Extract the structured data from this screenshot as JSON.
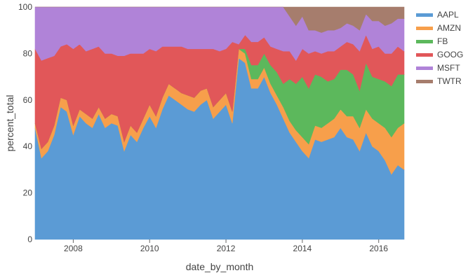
{
  "chart_data": {
    "type": "area",
    "stacked": true,
    "xlabel": "date_by_month",
    "ylabel": "percent_total",
    "ylim": [
      0,
      100
    ],
    "yticks": [
      0,
      20,
      40,
      60,
      80,
      100
    ],
    "xlim": [
      "2007-01",
      "2016-09"
    ],
    "xticks": [
      "2008",
      "2010",
      "2012",
      "2014",
      "2016"
    ],
    "grid": false,
    "legend_position": "right",
    "x": [
      "2007-01",
      "2007-03",
      "2007-05",
      "2007-07",
      "2007-09",
      "2007-11",
      "2008-01",
      "2008-03",
      "2008-05",
      "2008-07",
      "2008-09",
      "2008-11",
      "2009-01",
      "2009-03",
      "2009-05",
      "2009-07",
      "2009-09",
      "2009-11",
      "2010-01",
      "2010-03",
      "2010-05",
      "2010-07",
      "2010-09",
      "2010-11",
      "2011-01",
      "2011-03",
      "2011-05",
      "2011-07",
      "2011-09",
      "2011-11",
      "2012-01",
      "2012-03",
      "2012-05",
      "2012-07",
      "2012-09",
      "2012-11",
      "2013-01",
      "2013-03",
      "2013-05",
      "2013-07",
      "2013-09",
      "2013-11",
      "2014-01",
      "2014-03",
      "2014-05",
      "2014-07",
      "2014-09",
      "2014-11",
      "2015-01",
      "2015-03",
      "2015-05",
      "2015-07",
      "2015-09",
      "2015-11",
      "2016-01",
      "2016-03",
      "2016-05",
      "2016-07",
      "2016-09"
    ],
    "series": [
      {
        "name": "AAPL",
        "color": "#5b9bd5",
        "values": [
          48,
          35,
          38,
          45,
          57,
          55,
          45,
          53,
          50,
          48,
          54,
          48,
          50,
          49,
          38,
          45,
          42,
          48,
          53,
          48,
          56,
          62,
          60,
          58,
          56,
          55,
          58,
          60,
          52,
          55,
          58,
          50,
          78,
          76,
          65,
          65,
          70,
          63,
          58,
          52,
          46,
          42,
          38,
          35,
          43,
          42,
          43,
          44,
          48,
          44,
          43,
          38,
          46,
          40,
          38,
          34,
          28,
          32,
          30
        ]
      },
      {
        "name": "AMZN",
        "color": "#f79f4b",
        "values": [
          2,
          4,
          4,
          4,
          4,
          5,
          4,
          3,
          4,
          4,
          3,
          4,
          4,
          4,
          4,
          4,
          4,
          4,
          5,
          5,
          5,
          5,
          5,
          5,
          6,
          6,
          6,
          5,
          5,
          5,
          5,
          5,
          4,
          4,
          4,
          4,
          4,
          4,
          4,
          5,
          5,
          5,
          6,
          6,
          6,
          6,
          7,
          8,
          8,
          9,
          10,
          10,
          10,
          12,
          12,
          14,
          16,
          16,
          20
        ]
      },
      {
        "name": "FB",
        "color": "#5cb85c",
        "values": [
          0,
          0,
          0,
          0,
          0,
          0,
          0,
          0,
          0,
          0,
          0,
          0,
          0,
          0,
          0,
          0,
          0,
          0,
          0,
          0,
          0,
          0,
          0,
          0,
          0,
          0,
          0,
          0,
          0,
          0,
          0,
          0,
          0,
          2,
          6,
          6,
          6,
          8,
          10,
          10,
          18,
          20,
          26,
          24,
          22,
          22,
          18,
          17,
          17,
          20,
          18,
          16,
          20,
          18,
          19,
          20,
          22,
          23,
          21
        ]
      },
      {
        "name": "GOOG",
        "color": "#e15759",
        "values": [
          32,
          38,
          36,
          30,
          22,
          24,
          33,
          28,
          27,
          30,
          26,
          28,
          26,
          26,
          37,
          31,
          34,
          28,
          24,
          28,
          22,
          16,
          18,
          20,
          20,
          21,
          18,
          17,
          25,
          21,
          19,
          30,
          2,
          6,
          10,
          10,
          7,
          8,
          10,
          14,
          12,
          10,
          12,
          15,
          10,
          10,
          13,
          12,
          10,
          12,
          13,
          17,
          12,
          12,
          14,
          12,
          14,
          12,
          10
        ]
      },
      {
        "name": "MSFT",
        "color": "#b083d8",
        "values": [
          18,
          23,
          22,
          21,
          17,
          16,
          18,
          16,
          19,
          18,
          17,
          20,
          20,
          21,
          21,
          20,
          20,
          20,
          18,
          19,
          17,
          17,
          17,
          17,
          18,
          18,
          18,
          18,
          18,
          19,
          18,
          15,
          16,
          12,
          15,
          15,
          13,
          17,
          18,
          19,
          15,
          15,
          14,
          10,
          9,
          9,
          9,
          9,
          8,
          8,
          8,
          9,
          9,
          12,
          11,
          12,
          13,
          12,
          14
        ]
      },
      {
        "name": "TWTR",
        "color": "#a67d6d",
        "values": [
          0,
          0,
          0,
          0,
          0,
          0,
          0,
          0,
          0,
          0,
          0,
          0,
          0,
          0,
          0,
          0,
          0,
          0,
          0,
          0,
          0,
          0,
          0,
          0,
          0,
          0,
          0,
          0,
          0,
          0,
          0,
          0,
          0,
          0,
          0,
          0,
          0,
          0,
          0,
          0,
          4,
          8,
          4,
          10,
          10,
          11,
          10,
          10,
          9,
          7,
          8,
          10,
          3,
          6,
          6,
          8,
          7,
          5,
          5
        ]
      }
    ]
  }
}
